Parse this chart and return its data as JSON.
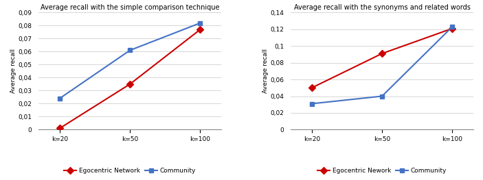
{
  "left": {
    "title": "Average recall with the simple comparison technique",
    "ylabel": "Average recall",
    "x_labels": [
      "k=20",
      "k=50",
      "k=100"
    ],
    "egocentric": [
      0.001,
      0.035,
      0.077
    ],
    "community": [
      0.024,
      0.061,
      0.082
    ],
    "ylim": [
      0,
      0.09
    ],
    "yticks": [
      0,
      0.01,
      0.02,
      0.03,
      0.04,
      0.05,
      0.06,
      0.07,
      0.08,
      0.09
    ]
  },
  "right": {
    "title": "Average recall with the synonyms and related words",
    "ylabel": "Average recall",
    "x_labels": [
      "k=20",
      "k=50",
      "k=100"
    ],
    "egocentric": [
      0.05,
      0.091,
      0.121
    ],
    "community": [
      0.031,
      0.04,
      0.123
    ],
    "ylim": [
      0,
      0.14
    ],
    "yticks": [
      0,
      0.02,
      0.04,
      0.06,
      0.08,
      0.1,
      0.12,
      0.14
    ]
  },
  "ego_color": "#cc0000",
  "comm_color": "#4472c4",
  "ego_label_left": "Egocentric Network",
  "ego_label_right": "Egocentric Nework",
  "comm_label": "Community",
  "marker_ego": "D",
  "marker_comm": "s",
  "linewidth": 1.5,
  "markersize": 5,
  "title_fontsize": 7.0,
  "label_fontsize": 6.5,
  "tick_fontsize": 6.5,
  "legend_fontsize": 6.5
}
